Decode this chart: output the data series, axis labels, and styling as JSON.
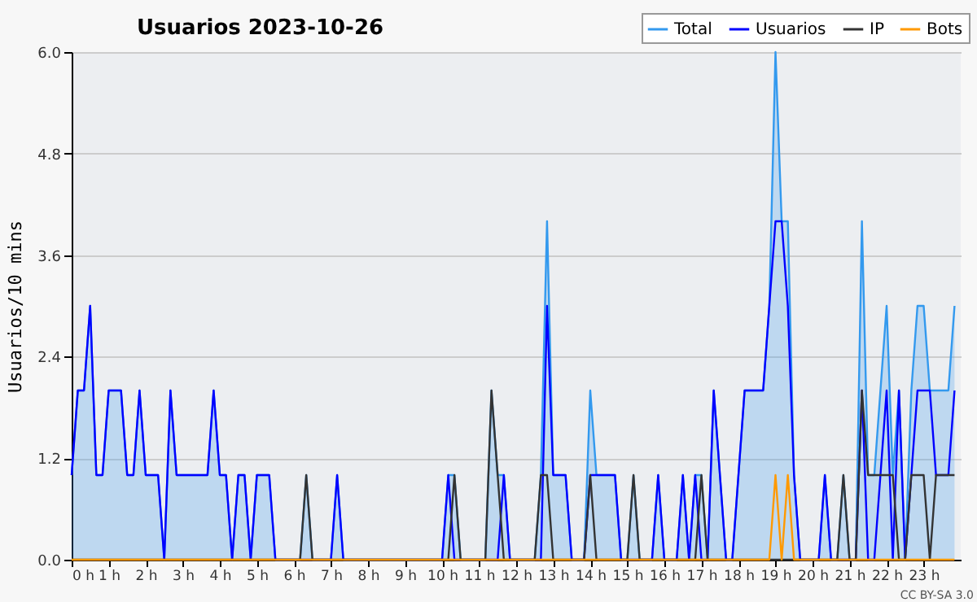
{
  "chart_data": {
    "type": "line",
    "title": "Usuarios  2023-10-26",
    "ylabel": "Usuarios/10 mins",
    "annotations": [
      "CC BY-SA 3.0"
    ],
    "x": [
      0,
      0.167,
      0.333,
      0.5,
      0.667,
      0.833,
      1,
      1.167,
      1.333,
      1.5,
      1.667,
      1.833,
      2,
      2.167,
      2.333,
      2.5,
      2.667,
      2.833,
      3,
      3.167,
      3.333,
      3.5,
      3.667,
      3.833,
      4,
      4.167,
      4.333,
      4.5,
      4.667,
      4.833,
      5,
      5.167,
      5.333,
      5.5,
      5.667,
      5.833,
      6,
      6.167,
      6.333,
      6.5,
      6.667,
      6.833,
      7,
      7.167,
      7.333,
      7.5,
      7.667,
      7.833,
      8,
      8.167,
      8.333,
      8.5,
      8.667,
      8.833,
      9,
      9.167,
      9.333,
      9.5,
      9.667,
      9.833,
      10,
      10.167,
      10.333,
      10.5,
      10.667,
      10.833,
      11,
      11.167,
      11.333,
      11.5,
      11.667,
      11.833,
      12,
      12.167,
      12.333,
      12.5,
      12.667,
      12.833,
      13,
      13.167,
      13.333,
      13.5,
      13.667,
      13.833,
      14,
      14.167,
      14.333,
      14.5,
      14.667,
      14.833,
      15,
      15.167,
      15.333,
      15.5,
      15.667,
      15.833,
      16,
      16.167,
      16.333,
      16.5,
      16.667,
      16.833,
      17,
      17.167,
      17.333,
      17.5,
      17.667,
      17.833,
      18,
      18.167,
      18.333,
      18.5,
      18.667,
      18.833,
      19,
      19.167,
      19.333,
      19.5,
      19.667,
      19.833,
      20,
      20.167,
      20.333,
      20.5,
      20.667,
      20.833,
      21,
      21.167,
      21.333,
      21.5,
      21.667,
      21.833,
      22,
      22.167,
      22.333,
      22.5,
      22.667,
      22.833,
      23,
      23.167,
      23.333,
      23.5,
      23.667,
      23.833
    ],
    "series": [
      {
        "name": "Total",
        "type": "area",
        "color": "#3399ee",
        "values": [
          1,
          2,
          2,
          3,
          1,
          1,
          2,
          2,
          2,
          1,
          1,
          2,
          1,
          1,
          1,
          0,
          2,
          1,
          1,
          1,
          1,
          1,
          1,
          2,
          1,
          1,
          0,
          1,
          1,
          0,
          1,
          1,
          1,
          0,
          0,
          0,
          0,
          0,
          1,
          0,
          0,
          0,
          0,
          1,
          0,
          0,
          0,
          0,
          0,
          0,
          0,
          0,
          0,
          0,
          0,
          0,
          0,
          0,
          0,
          0,
          0,
          1,
          1,
          0,
          0,
          0,
          0,
          0,
          2,
          1,
          1,
          0,
          0,
          0,
          0,
          0,
          1,
          4,
          1,
          1,
          1,
          0,
          0,
          0,
          2,
          1,
          1,
          1,
          1,
          0,
          0,
          1,
          0,
          0,
          0,
          1,
          0,
          0,
          0,
          1,
          0,
          1,
          1,
          0,
          2,
          1,
          0,
          0,
          1,
          2,
          2,
          2,
          2,
          3,
          6,
          4,
          4,
          1,
          0,
          0,
          0,
          0,
          1,
          0,
          0,
          1,
          0,
          0,
          4,
          1,
          1,
          2,
          3,
          1,
          2,
          0,
          2,
          3,
          3,
          2,
          2,
          2,
          2,
          3
        ]
      },
      {
        "name": "Usuarios",
        "color": "#0000ff",
        "values": [
          1,
          2,
          2,
          3,
          1,
          1,
          2,
          2,
          2,
          1,
          1,
          2,
          1,
          1,
          1,
          0,
          2,
          1,
          1,
          1,
          1,
          1,
          1,
          2,
          1,
          1,
          0,
          1,
          1,
          0,
          1,
          1,
          1,
          0,
          0,
          0,
          0,
          0,
          0,
          0,
          0,
          0,
          0,
          1,
          0,
          0,
          0,
          0,
          0,
          0,
          0,
          0,
          0,
          0,
          0,
          0,
          0,
          0,
          0,
          0,
          0,
          1,
          0,
          0,
          0,
          0,
          0,
          0,
          0,
          0,
          1,
          0,
          0,
          0,
          0,
          0,
          0,
          3,
          1,
          1,
          1,
          0,
          0,
          0,
          1,
          1,
          1,
          1,
          1,
          0,
          0,
          0,
          0,
          0,
          0,
          1,
          0,
          0,
          0,
          1,
          0,
          1,
          0,
          0,
          2,
          1,
          0,
          0,
          1,
          2,
          2,
          2,
          2,
          3,
          4,
          4,
          3,
          1,
          0,
          0,
          0,
          0,
          1,
          0,
          0,
          0,
          0,
          0,
          2,
          0,
          0,
          1,
          2,
          0,
          2,
          0,
          1,
          2,
          2,
          2,
          1,
          1,
          1,
          2
        ]
      },
      {
        "name": "IP",
        "color": "#333333",
        "values": [
          0,
          0,
          0,
          0,
          0,
          0,
          0,
          0,
          0,
          0,
          0,
          0,
          0,
          0,
          0,
          0,
          0,
          0,
          0,
          0,
          0,
          0,
          0,
          0,
          0,
          0,
          0,
          0,
          0,
          0,
          0,
          0,
          0,
          0,
          0,
          0,
          0,
          0,
          1,
          0,
          0,
          0,
          0,
          0,
          0,
          0,
          0,
          0,
          0,
          0,
          0,
          0,
          0,
          0,
          0,
          0,
          0,
          0,
          0,
          0,
          0,
          0,
          1,
          0,
          0,
          0,
          0,
          0,
          2,
          1,
          0,
          0,
          0,
          0,
          0,
          0,
          1,
          1,
          0,
          0,
          0,
          0,
          0,
          0,
          1,
          0,
          0,
          0,
          0,
          0,
          0,
          1,
          0,
          0,
          0,
          0,
          0,
          0,
          0,
          0,
          0,
          0,
          1,
          0,
          0,
          0,
          0,
          0,
          0,
          0,
          0,
          0,
          0,
          0,
          0,
          0,
          0,
          0,
          0,
          0,
          0,
          0,
          0,
          0,
          0,
          1,
          0,
          0,
          2,
          1,
          1,
          1,
          1,
          1,
          0,
          0,
          1,
          1,
          1,
          0,
          1,
          1,
          1,
          1
        ]
      },
      {
        "name": "Bots",
        "color": "#ff9900",
        "values": [
          0,
          0,
          0,
          0,
          0,
          0,
          0,
          0,
          0,
          0,
          0,
          0,
          0,
          0,
          0,
          0,
          0,
          0,
          0,
          0,
          0,
          0,
          0,
          0,
          0,
          0,
          0,
          0,
          0,
          0,
          0,
          0,
          0,
          0,
          0,
          0,
          0,
          0,
          0,
          0,
          0,
          0,
          0,
          0,
          0,
          0,
          0,
          0,
          0,
          0,
          0,
          0,
          0,
          0,
          0,
          0,
          0,
          0,
          0,
          0,
          0,
          0,
          0,
          0,
          0,
          0,
          0,
          0,
          0,
          0,
          0,
          0,
          0,
          0,
          0,
          0,
          0,
          0,
          0,
          0,
          0,
          0,
          0,
          0,
          0,
          0,
          0,
          0,
          0,
          0,
          0,
          0,
          0,
          0,
          0,
          0,
          0,
          0,
          0,
          0,
          0,
          0,
          0,
          0,
          0,
          0,
          0,
          0,
          0,
          0,
          0,
          0,
          0,
          0,
          1,
          0,
          1,
          0,
          0,
          0,
          0,
          0,
          0,
          0,
          0,
          0,
          0,
          0,
          0,
          0,
          0,
          0,
          0,
          0,
          0,
          0,
          0,
          0,
          0,
          0,
          0,
          0,
          0,
          0
        ]
      }
    ],
    "xlim": [
      0,
      24
    ],
    "xticks": [
      {
        "value": 0,
        "label": "0 h"
      },
      {
        "value": 1,
        "label": "1 h"
      },
      {
        "value": 2,
        "label": "2 h"
      },
      {
        "value": 3,
        "label": "3 h"
      },
      {
        "value": 4,
        "label": "4 h"
      },
      {
        "value": 5,
        "label": "5 h"
      },
      {
        "value": 6,
        "label": "6 h"
      },
      {
        "value": 7,
        "label": "7 h"
      },
      {
        "value": 8,
        "label": "8 h"
      },
      {
        "value": 9,
        "label": "9 h"
      },
      {
        "value": 10,
        "label": "10 h"
      },
      {
        "value": 11,
        "label": "11 h"
      },
      {
        "value": 12,
        "label": "12 h"
      },
      {
        "value": 13,
        "label": "13 h"
      },
      {
        "value": 14,
        "label": "14 h"
      },
      {
        "value": 15,
        "label": "15 h"
      },
      {
        "value": 16,
        "label": "16 h"
      },
      {
        "value": 17,
        "label": "17 h"
      },
      {
        "value": 18,
        "label": "18 h"
      },
      {
        "value": 19,
        "label": "19 h"
      },
      {
        "value": 20,
        "label": "20 h"
      },
      {
        "value": 21,
        "label": "21 h"
      },
      {
        "value": 22,
        "label": "22 h"
      },
      {
        "value": 23,
        "label": "23 h"
      }
    ],
    "ylim": [
      0,
      6
    ],
    "yticks": [
      {
        "value": 0,
        "label": "0.0"
      },
      1.2,
      2.4,
      3.6,
      4.8,
      {
        "value": 6,
        "label": "6.0"
      }
    ],
    "grid": "y",
    "legend": "top right",
    "line_style": "solid"
  }
}
